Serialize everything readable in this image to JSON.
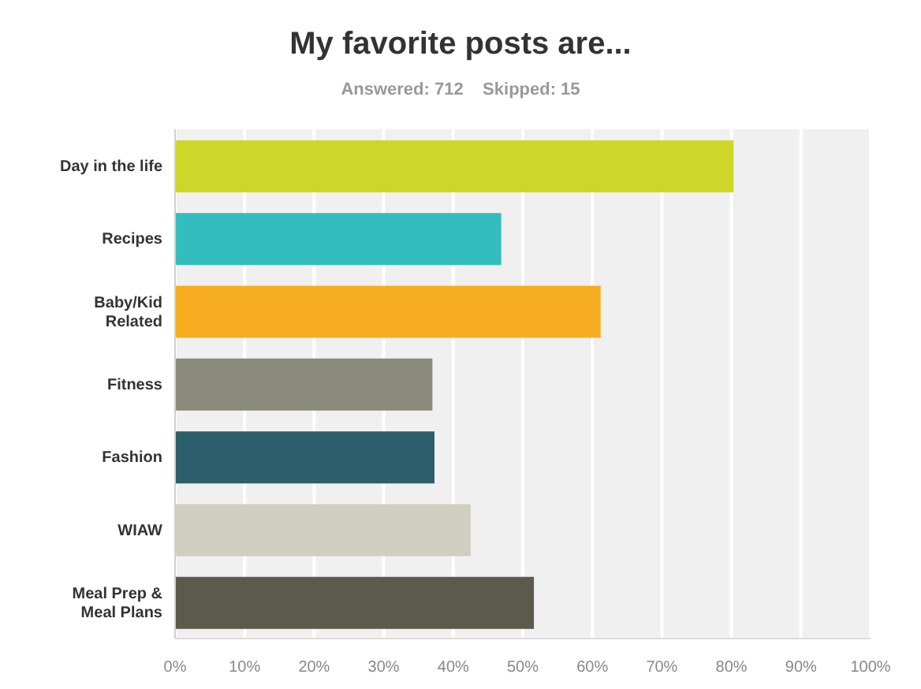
{
  "chart_data": {
    "type": "bar",
    "orientation": "horizontal",
    "title": "My favorite posts are...",
    "subtitle": "Answered: 712    Skipped: 15",
    "categories": [
      "Day in the life",
      "Recipes",
      "Baby/Kid Related",
      "Fitness",
      "Fashion",
      "WIAW",
      "Meal Prep & Meal Plans"
    ],
    "values": [
      80.3,
      46.9,
      61.2,
      37,
      37.3,
      42.5,
      51.6
    ],
    "colors": [
      "#cfd62a",
      "#33bdbf",
      "#f6ae20",
      "#898a79",
      "#2d5e6b",
      "#d0cec0",
      "#5c5a4b"
    ],
    "xlim": [
      0,
      100
    ],
    "xticks": [
      {
        "value": 0,
        "label": "0%"
      },
      {
        "value": 10,
        "label": "10%"
      },
      {
        "value": 20,
        "label": "20%"
      },
      {
        "value": 30,
        "label": "30%"
      },
      {
        "value": 40,
        "label": "40%"
      },
      {
        "value": 50,
        "label": "50%"
      },
      {
        "value": 60,
        "label": "60%"
      },
      {
        "value": 70,
        "label": "70%"
      },
      {
        "value": 80,
        "label": "80%"
      },
      {
        "value": 90,
        "label": "90%"
      },
      {
        "value": 100,
        "label": "100%"
      }
    ],
    "grid": "x"
  }
}
